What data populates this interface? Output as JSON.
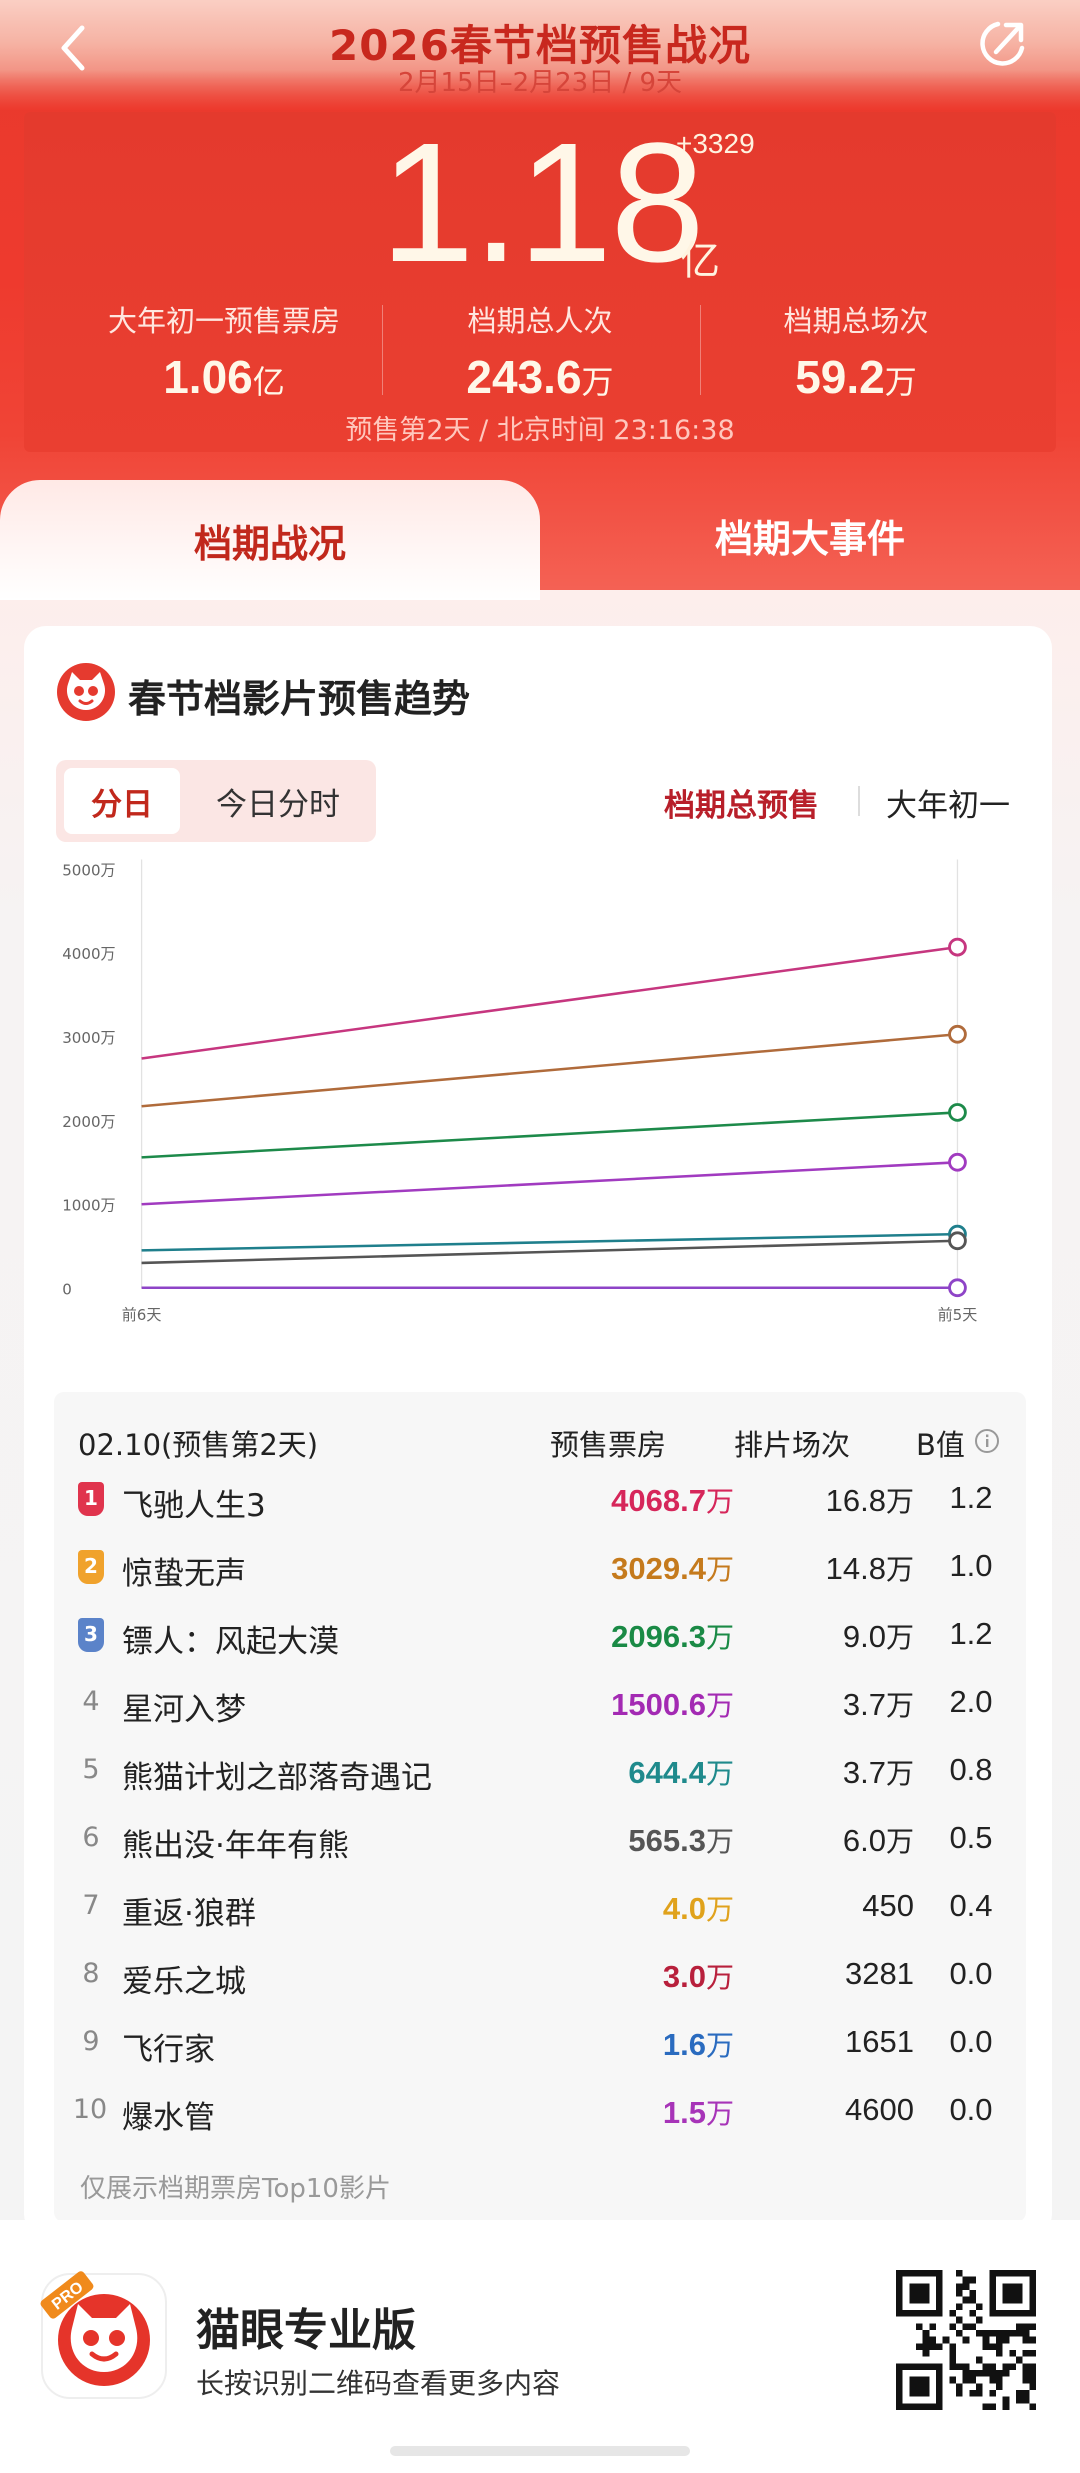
{
  "header": {
    "title": "2026春节档预售战况",
    "subtitle": "2月15日–2月23日 / 9天",
    "total_value": "1.18",
    "total_unit": "亿",
    "total_delta": "+3329",
    "stats": [
      {
        "label": "大年初一预售票房",
        "value": "1.06",
        "unit": "亿"
      },
      {
        "label": "档期总人次",
        "value": "243.6",
        "unit": "万"
      },
      {
        "label": "档期总场次",
        "value": "59.2",
        "unit": "万"
      }
    ],
    "time_info": "预售第2天 / 北京时间 23:16:38"
  },
  "tabs": [
    "档期战况",
    "档期大事件"
  ],
  "card": {
    "title": "春节档影片预售趋势",
    "segments": [
      "分日",
      "今日分时"
    ],
    "modes": [
      "档期总预售",
      "大年初一"
    ]
  },
  "chart_data": {
    "type": "line",
    "x": [
      "前6天",
      "前5天"
    ],
    "y_ticks": [
      "5000万",
      "4000万",
      "3000万",
      "2000万",
      "1000万",
      "0"
    ],
    "ylim": [
      0,
      5000
    ],
    "series": [
      {
        "color": "#c6367f",
        "values": [
          2740,
          4069
        ]
      },
      {
        "color": "#b06b3b",
        "values": [
          2170,
          3029
        ]
      },
      {
        "color": "#1d8a4a",
        "values": [
          1560,
          2096
        ]
      },
      {
        "color": "#a13bc0",
        "values": [
          1000,
          1501
        ]
      },
      {
        "color": "#1f7f8c",
        "values": [
          450,
          644
        ]
      },
      {
        "color": "#555555",
        "values": [
          300,
          565
        ]
      },
      {
        "color": "#8e44c7",
        "values": [
          4,
          4
        ]
      }
    ]
  },
  "table": {
    "date_header": "02.10(预售第2天)",
    "col_box": "预售票房",
    "col_shows": "排片场次",
    "col_b": "B值",
    "rows": [
      {
        "rank": "1",
        "name": "飞驰人生3",
        "box": "4068.7",
        "box_unit": "万",
        "color": "#d6265a",
        "shows": "16.8",
        "shows_unit": "万",
        "b": "1.2"
      },
      {
        "rank": "2",
        "name": "惊蛰无声",
        "box": "3029.4",
        "box_unit": "万",
        "color": "#c57a1c",
        "shows": "14.8",
        "shows_unit": "万",
        "b": "1.0"
      },
      {
        "rank": "3",
        "name": "镖人：风起大漠",
        "box": "2096.3",
        "box_unit": "万",
        "color": "#1a8a45",
        "shows": "9.0",
        "shows_unit": "万",
        "b": "1.2"
      },
      {
        "rank": "4",
        "name": "星河入梦",
        "box": "1500.6",
        "box_unit": "万",
        "color": "#a32ab3",
        "shows": "3.7",
        "shows_unit": "万",
        "b": "2.0"
      },
      {
        "rank": "5",
        "name": "熊猫计划之部落奇遇记",
        "box": "644.4",
        "box_unit": "万",
        "color": "#1f8a8c",
        "shows": "3.7",
        "shows_unit": "万",
        "b": "0.8"
      },
      {
        "rank": "6",
        "name": "熊出没·年年有熊",
        "box": "565.3",
        "box_unit": "万",
        "color": "#555555",
        "shows": "6.0",
        "shows_unit": "万",
        "b": "0.5"
      },
      {
        "rank": "7",
        "name": "重返·狼群",
        "box": "4.0",
        "box_unit": "万",
        "color": "#e0a21c",
        "shows": "450",
        "shows_unit": "",
        "b": "0.4"
      },
      {
        "rank": "8",
        "name": "爱乐之城",
        "box": "3.0",
        "box_unit": "万",
        "color": "#b8203c",
        "shows": "3281",
        "shows_unit": "",
        "b": "0.0"
      },
      {
        "rank": "9",
        "name": "飞行家",
        "box": "1.6",
        "box_unit": "万",
        "color": "#2a6bbf",
        "shows": "1651",
        "shows_unit": "",
        "b": "0.0"
      },
      {
        "rank": "10",
        "name": "爆水管",
        "box": "1.5",
        "box_unit": "万",
        "color": "#a734b8",
        "shows": "4600",
        "shows_unit": "",
        "b": "0.0"
      }
    ],
    "note": "仅展示档期票房Top10影片"
  },
  "footer": {
    "app_name": "猫眼专业版",
    "app_desc": "长按识别二维码查看更多内容",
    "badge": "PRO"
  }
}
